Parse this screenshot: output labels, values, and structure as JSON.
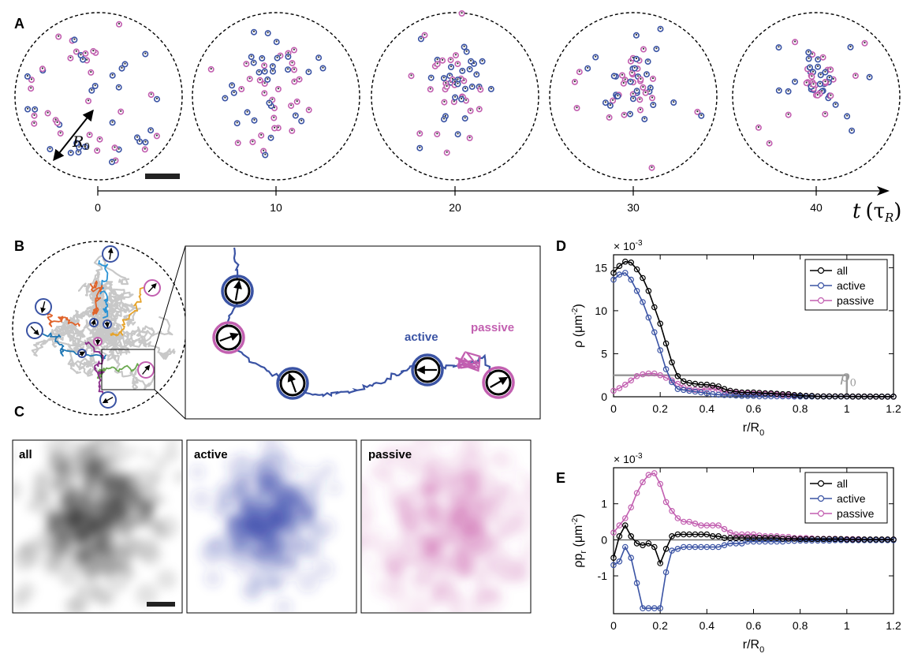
{
  "panels": {
    "a": "A",
    "b": "B",
    "c": "C",
    "d": "D",
    "e": "E"
  },
  "colors": {
    "all": "#000000",
    "active": "#3a53a4",
    "passive": "#c25fb0",
    "rho0": "#9a9a9a",
    "trace": "#c8c8c8"
  },
  "panel_a": {
    "r0_label": "R",
    "r0_sub": "0",
    "time_ticks": [
      "0",
      "10",
      "20",
      "30",
      "40"
    ],
    "time_axis_symbol": "t",
    "time_axis_unit": "(τ",
    "time_axis_unit_sub": "R",
    "time_axis_unit_close": ")"
  },
  "panel_b": {
    "active_label": "active",
    "passive_label": "passive"
  },
  "panel_c": {
    "maps": [
      "all",
      "active",
      "passive"
    ]
  },
  "chart_data": [
    {
      "type": "line",
      "panel": "D",
      "exponent": "× 10",
      "exponent_power": "-3",
      "ylabel": "ρ (μm",
      "ylabel_power": "-2",
      "ylabel_close": ")",
      "xlabel": "r/R",
      "xlabel_sub": "0",
      "xlim": [
        0,
        1.2
      ],
      "ylim": [
        0,
        16.5
      ],
      "xticks": [
        "0",
        "0.2",
        "0.4",
        "0.6",
        "0.8",
        "1",
        "1.2"
      ],
      "xtick_values": [
        0,
        0.2,
        0.4,
        0.6,
        0.8,
        1,
        1.2
      ],
      "yticks": [
        "0",
        "5",
        "10",
        "15"
      ],
      "ytick_values": [
        0,
        5,
        10,
        15
      ],
      "legend": "top-right",
      "x": [
        0,
        0.025,
        0.05,
        0.075,
        0.1,
        0.125,
        0.15,
        0.175,
        0.2,
        0.225,
        0.25,
        0.275,
        0.3,
        0.325,
        0.35,
        0.375,
        0.4,
        0.425,
        0.45,
        0.475,
        0.5,
        0.525,
        0.55,
        0.575,
        0.6,
        0.625,
        0.65,
        0.675,
        0.7,
        0.725,
        0.75,
        0.775,
        0.8,
        0.825,
        0.85,
        0.875,
        0.9,
        0.925,
        0.95,
        0.975,
        1,
        1.025,
        1.05,
        1.075,
        1.1,
        1.125,
        1.15,
        1.175,
        1.2
      ],
      "series": [
        {
          "name": "all",
          "values": [
            14.4,
            15.2,
            15.7,
            15.6,
            14.8,
            13.8,
            12.3,
            10.4,
            8.5,
            6.2,
            4.0,
            2.4,
            1.8,
            1.6,
            1.5,
            1.4,
            1.4,
            1.3,
            1.2,
            0.9,
            0.7,
            0.6,
            0.5,
            0.5,
            0.5,
            0.45,
            0.4,
            0.4,
            0.35,
            0.3,
            0.3,
            0.2,
            0.15,
            0.1,
            0.1,
            0.05,
            0.05,
            0.05,
            0.05,
            0.05,
            0.05,
            0.03,
            0.03,
            0.03,
            0.03,
            0.02,
            0.02,
            0.02,
            0.02
          ]
        },
        {
          "name": "active",
          "values": [
            13.6,
            14.2,
            14.4,
            13.6,
            12.3,
            11.0,
            9.2,
            7.5,
            5.4,
            3.2,
            1.7,
            0.9,
            0.8,
            0.7,
            0.6,
            0.5,
            0.4,
            0.3,
            0.25,
            0.2,
            0.2,
            0.15,
            0.1,
            0.1,
            0.1,
            0.05,
            0.05,
            0.05,
            0.05,
            0.05,
            0.05,
            0.03,
            0.03,
            0.03,
            0.03,
            0.03,
            0.03,
            0.03,
            0.03,
            0.03,
            0.03,
            0.02,
            0.02,
            0.02,
            0.02,
            0.02,
            0.02,
            0.02,
            0.02
          ]
        },
        {
          "name": "passive",
          "values": [
            0.7,
            1.0,
            1.4,
            1.9,
            2.4,
            2.6,
            2.7,
            2.7,
            2.5,
            2.2,
            1.9,
            1.5,
            1.1,
            0.9,
            0.8,
            0.85,
            0.9,
            0.9,
            0.8,
            0.6,
            0.5,
            0.45,
            0.4,
            0.4,
            0.35,
            0.3,
            0.3,
            0.3,
            0.25,
            0.2,
            0.2,
            0.15,
            0.1,
            0.1,
            0.08,
            0.05,
            0.05,
            0.05,
            0.05,
            0.05,
            0.05,
            0.03,
            0.03,
            0.03,
            0.03,
            0.02,
            0.02,
            0.02,
            0.02
          ]
        }
      ],
      "reference": {
        "name": "ρ",
        "name_sub": "0",
        "value": 2.5,
        "x_end": 1.0
      }
    },
    {
      "type": "line",
      "panel": "E",
      "exponent": "× 10",
      "exponent_power": "-3",
      "ylabel": "ρp",
      "ylabel_sub": "r",
      "ylabel_rest": " (μm",
      "ylabel_power": "-2",
      "ylabel_close": ")",
      "xlabel": "r/R",
      "xlabel_sub": "0",
      "xlim": [
        0,
        1.2
      ],
      "ylim": [
        -2.05,
        2.0
      ],
      "xticks": [
        "0",
        "0.2",
        "0.4",
        "0.6",
        "0.8",
        "1",
        "1.2"
      ],
      "xtick_values": [
        0,
        0.2,
        0.4,
        0.6,
        0.8,
        1,
        1.2
      ],
      "yticks": [
        "-1",
        "0",
        "1"
      ],
      "ytick_values": [
        -1,
        0,
        1
      ],
      "legend": "top-right",
      "x": [
        0,
        0.025,
        0.05,
        0.075,
        0.1,
        0.125,
        0.15,
        0.175,
        0.2,
        0.225,
        0.25,
        0.275,
        0.3,
        0.325,
        0.35,
        0.375,
        0.4,
        0.425,
        0.45,
        0.475,
        0.5,
        0.525,
        0.55,
        0.575,
        0.6,
        0.625,
        0.65,
        0.675,
        0.7,
        0.725,
        0.75,
        0.775,
        0.8,
        0.825,
        0.85,
        0.875,
        0.9,
        0.925,
        0.95,
        0.975,
        1,
        1.025,
        1.05,
        1.075,
        1.1,
        1.125,
        1.15,
        1.175,
        1.2
      ],
      "series": [
        {
          "name": "all",
          "values": [
            -0.5,
            0.1,
            0.4,
            0.1,
            -0.1,
            -0.15,
            -0.1,
            -0.2,
            -0.65,
            -0.25,
            0.1,
            0.15,
            0.15,
            0.15,
            0.15,
            0.15,
            0.15,
            0.1,
            0.1,
            0.05,
            0.05,
            0.05,
            0.05,
            0.05,
            0.05,
            0.05,
            0.05,
            0.05,
            0.05,
            0.03,
            0.03,
            0.03,
            0.02,
            0.02,
            0.02,
            0.02,
            0.02,
            0.02,
            0.02,
            0.02,
            0.01,
            0.01,
            0.01,
            0.01,
            0.01,
            0.01,
            0.01,
            0.01,
            0.01
          ]
        },
        {
          "name": "active",
          "values": [
            -0.7,
            -0.6,
            -0.2,
            -0.5,
            -1.2,
            -1.9,
            -1.9,
            -1.9,
            -1.9,
            -0.9,
            -0.3,
            -0.25,
            -0.2,
            -0.2,
            -0.2,
            -0.2,
            -0.2,
            -0.2,
            -0.2,
            -0.15,
            -0.1,
            -0.1,
            -0.1,
            -0.05,
            -0.05,
            -0.05,
            -0.05,
            -0.05,
            -0.05,
            -0.05,
            -0.03,
            -0.03,
            -0.02,
            -0.02,
            -0.02,
            -0.02,
            -0.02,
            -0.02,
            -0.01,
            -0.01,
            -0.01,
            -0.01,
            -0.01,
            -0.01,
            -0.01,
            -0.01,
            -0.01,
            -0.01,
            -0.01
          ]
        },
        {
          "name": "passive",
          "values": [
            0.2,
            0.4,
            0.6,
            0.9,
            1.3,
            1.6,
            1.8,
            1.85,
            1.55,
            1.05,
            0.8,
            0.6,
            0.5,
            0.5,
            0.45,
            0.4,
            0.4,
            0.4,
            0.4,
            0.3,
            0.2,
            0.15,
            0.15,
            0.15,
            0.15,
            0.12,
            0.1,
            0.1,
            0.1,
            0.08,
            0.08,
            0.05,
            0.05,
            0.05,
            0.04,
            0.03,
            0.03,
            0.03,
            0.03,
            0.02,
            0.02,
            0.02,
            0.02,
            0.01,
            0.01,
            0.01,
            0.01,
            0.01,
            0.01
          ]
        }
      ],
      "zero_line": true
    }
  ]
}
